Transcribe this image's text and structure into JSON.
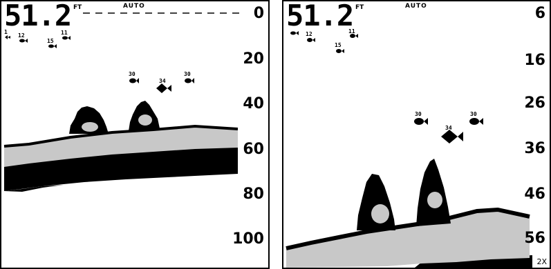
{
  "left": {
    "depth": "51.2",
    "unit": "FT",
    "mode": "AUTO",
    "scale": [
      "0",
      "20",
      "40",
      "60",
      "80",
      "100"
    ],
    "fish": [
      {
        "depth": "1",
        "name": "fish-1"
      },
      {
        "depth": "12",
        "name": "fish-12"
      },
      {
        "depth": "15",
        "name": "fish-15"
      },
      {
        "depth": "11",
        "name": "fish-11"
      },
      {
        "depth": "30",
        "name": "fish-30a"
      },
      {
        "depth": "34",
        "name": "fish-34"
      },
      {
        "depth": "30",
        "name": "fish-30b"
      }
    ]
  },
  "right": {
    "depth": "51.2",
    "unit": "FT",
    "mode": "AUTO",
    "scale": [
      "6",
      "16",
      "26",
      "36",
      "46",
      "56"
    ],
    "zoom": "2X",
    "fish": [
      {
        "depth": "",
        "name": "fish-surface"
      },
      {
        "depth": "12",
        "name": "fish-12"
      },
      {
        "depth": "15",
        "name": "fish-15"
      },
      {
        "depth": "11",
        "name": "fish-11"
      },
      {
        "depth": "30",
        "name": "fish-30a"
      },
      {
        "depth": "34",
        "name": "fish-34"
      },
      {
        "depth": "30",
        "name": "fish-30b"
      }
    ]
  },
  "colors": {
    "bottom": "#c8c8c8",
    "ink": "#000000",
    "background": "#ffffff"
  },
  "icons": [
    "fish-icon",
    "tree-structure-icon"
  ]
}
